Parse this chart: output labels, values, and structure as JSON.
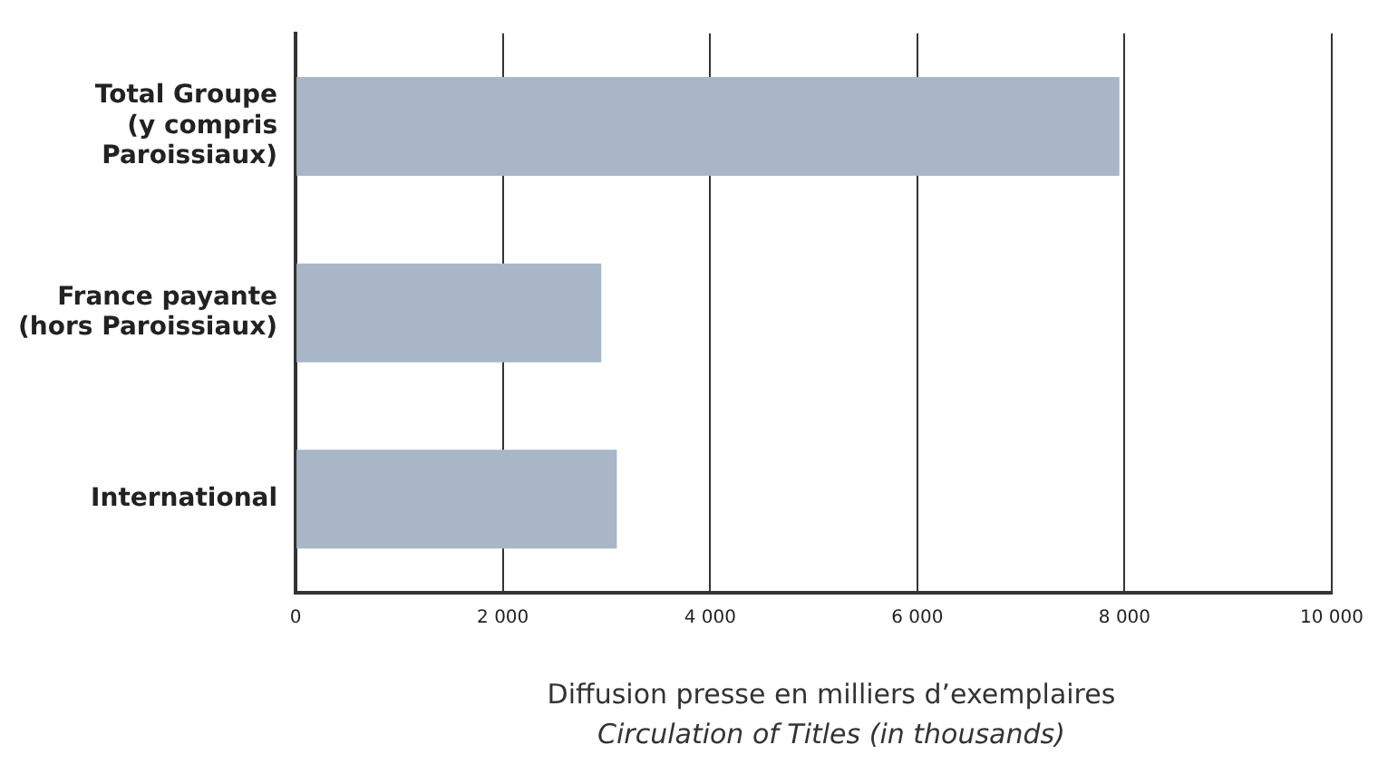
{
  "chart_data": {
    "type": "bar",
    "orientation": "horizontal",
    "categories": [
      "Total Groupe\n(y compris\nParoissiaux)",
      "France payante\n(hors Paroissiaux)",
      "International"
    ],
    "values": [
      7950,
      2950,
      3100
    ],
    "color": "#a9b6c8",
    "xlim": [
      0,
      10000
    ],
    "xticks": [
      {
        "value": 0,
        "label": "0"
      },
      {
        "value": 2000,
        "label": "2 000"
      },
      {
        "value": 4000,
        "label": "4 000"
      },
      {
        "value": 6000,
        "label": "6 000"
      },
      {
        "value": 8000,
        "label": "8 000"
      },
      {
        "value": 10000,
        "label": "10 000"
      }
    ],
    "grid": "x",
    "legend": false,
    "xlabel": "Diffusion presse en milliers d’exemplaires",
    "annotations": [
      "Circulation of Titles (in thousands)"
    ]
  }
}
